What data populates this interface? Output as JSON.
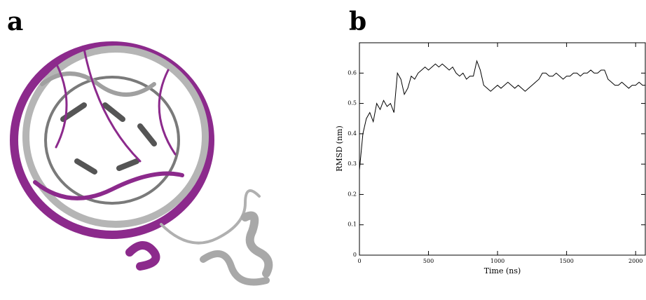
{
  "panels": {
    "a": "a",
    "b": "b"
  },
  "chart_data": {
    "type": "line",
    "ylabel": "RMSD (nm)",
    "xlabel": "Time (ns)",
    "xlim": [
      0,
      2070
    ],
    "ylim": [
      0,
      0.7
    ],
    "xticks": [
      0,
      500,
      1000,
      1500,
      2000
    ],
    "yticks": [
      0,
      0.1,
      0.2,
      0.3,
      0.4,
      0.5,
      0.6
    ],
    "x": [
      0,
      25,
      50,
      75,
      100,
      125,
      150,
      175,
      200,
      225,
      250,
      275,
      300,
      325,
      350,
      375,
      400,
      425,
      450,
      475,
      500,
      525,
      550,
      575,
      600,
      625,
      650,
      675,
      700,
      725,
      750,
      775,
      800,
      825,
      850,
      875,
      900,
      925,
      950,
      975,
      1000,
      1025,
      1050,
      1075,
      1100,
      1125,
      1150,
      1175,
      1200,
      1225,
      1250,
      1275,
      1300,
      1325,
      1350,
      1375,
      1400,
      1425,
      1450,
      1475,
      1500,
      1525,
      1550,
      1575,
      1600,
      1625,
      1650,
      1675,
      1700,
      1725,
      1750,
      1775,
      1800,
      1825,
      1850,
      1875,
      1900,
      1925,
      1950,
      1975,
      2000,
      2025,
      2050,
      2070
    ],
    "series": [
      {
        "color": "#000000",
        "values": [
          0.28,
          0.4,
          0.45,
          0.47,
          0.44,
          0.5,
          0.48,
          0.51,
          0.49,
          0.5,
          0.47,
          0.6,
          0.58,
          0.53,
          0.55,
          0.59,
          0.58,
          0.6,
          0.61,
          0.62,
          0.61,
          0.62,
          0.63,
          0.62,
          0.63,
          0.62,
          0.61,
          0.62,
          0.6,
          0.59,
          0.6,
          0.58,
          0.59,
          0.59,
          0.64,
          0.61,
          0.56,
          0.55,
          0.54,
          0.55,
          0.56,
          0.55,
          0.56,
          0.57,
          0.56,
          0.55,
          0.56,
          0.55,
          0.54,
          0.55,
          0.56,
          0.57,
          0.58,
          0.6,
          0.6,
          0.59,
          0.59,
          0.6,
          0.59,
          0.58,
          0.59,
          0.59,
          0.6,
          0.6,
          0.59,
          0.6,
          0.6,
          0.61,
          0.6,
          0.6,
          0.61,
          0.61,
          0.58,
          0.57,
          0.56,
          0.56,
          0.57,
          0.56,
          0.55,
          0.56,
          0.56,
          0.57,
          0.56,
          0.56
        ]
      }
    ]
  }
}
